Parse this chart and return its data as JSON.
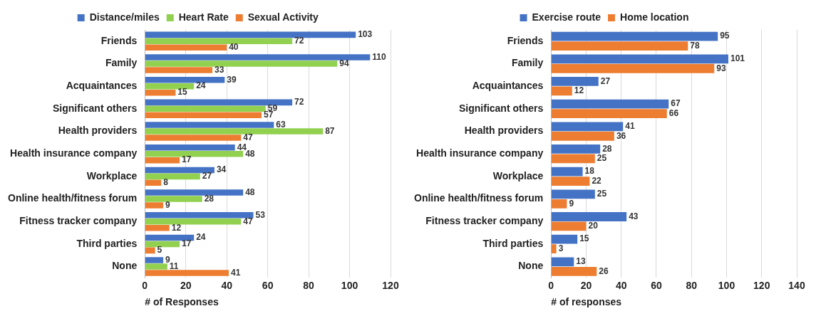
{
  "chart_data": [
    {
      "type": "bar",
      "orientation": "horizontal",
      "xlabel": "# of Responses",
      "categories": [
        "Friends",
        "Family",
        "Acquaintances",
        "Significant others",
        "Health providers",
        "Health insurance company",
        "Workplace",
        "Online health/fitness forum",
        "Fitness tracker company",
        "Third parties",
        "None"
      ],
      "series": [
        {
          "name": "Distance/miles",
          "color": "#4472c4",
          "values": [
            103,
            110,
            39,
            72,
            63,
            44,
            34,
            48,
            53,
            24,
            9
          ]
        },
        {
          "name": "Heart Rate",
          "color": "#92d050",
          "values": [
            72,
            94,
            24,
            59,
            87,
            48,
            27,
            28,
            47,
            17,
            11
          ]
        },
        {
          "name": "Sexual Activity",
          "color": "#ed7d31",
          "values": [
            40,
            33,
            15,
            57,
            47,
            17,
            8,
            9,
            12,
            5,
            41
          ]
        }
      ],
      "xlim": [
        0,
        120
      ],
      "xticks": [
        0,
        20,
        40,
        60,
        80,
        100,
        120
      ],
      "grid": "x",
      "legend": "top",
      "data_labels": true
    },
    {
      "type": "bar",
      "orientation": "horizontal",
      "xlabel": "# of responses",
      "categories": [
        "Friends",
        "Family",
        "Acquaintances",
        "Significant others",
        "Health providers",
        "Health insurance company",
        "Workplace",
        "Online health/fitness forum",
        "Fitness tracker company",
        "Third parties",
        "None"
      ],
      "series": [
        {
          "name": "Exercise route",
          "color": "#4472c4",
          "values": [
            95,
            101,
            27,
            67,
            41,
            28,
            18,
            25,
            43,
            15,
            13
          ]
        },
        {
          "name": "Home location",
          "color": "#ed7d31",
          "values": [
            78,
            93,
            12,
            66,
            36,
            25,
            22,
            9,
            20,
            3,
            26
          ]
        }
      ],
      "xlim": [
        0,
        140
      ],
      "xticks": [
        0,
        20,
        40,
        60,
        80,
        100,
        120,
        140
      ],
      "grid": "x",
      "legend": "top",
      "data_labels": true
    }
  ]
}
